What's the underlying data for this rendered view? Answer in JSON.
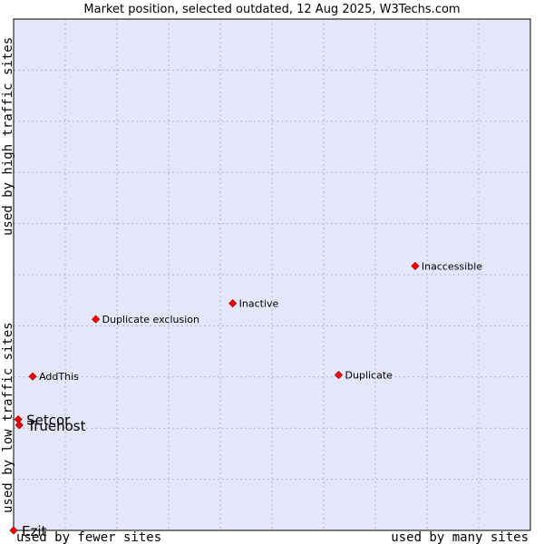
{
  "chart_data": {
    "type": "scatter",
    "title": "Market position, selected outdated, 12 Aug 2025, W3Techs.com",
    "xlabel_left": "used by fewer sites",
    "xlabel_right": "used by many sites",
    "ylabel_bottom": "used by low traffic sites",
    "ylabel_top": "used by high traffic sites",
    "xlim": [
      0,
      100
    ],
    "ylim": [
      0,
      100
    ],
    "grid": true,
    "colors": {
      "plot_background": "#e6e6fa",
      "grid": "#b0b0c8",
      "marker": "#ff0000",
      "marker_edge": "#990000"
    },
    "points": [
      {
        "label": "Inaccessible",
        "x": 77.7,
        "y": 51.7,
        "size": "small"
      },
      {
        "label": "Inactive",
        "x": 42.4,
        "y": 44.4,
        "size": "small"
      },
      {
        "label": "Duplicate exclusion",
        "x": 15.9,
        "y": 41.3,
        "size": "small"
      },
      {
        "label": "AddThis",
        "x": 3.7,
        "y": 30.1,
        "size": "small"
      },
      {
        "label": "Duplicate",
        "x": 62.9,
        "y": 30.4,
        "size": "small"
      },
      {
        "label": "Setcor",
        "x": 0.9,
        "y": 21.7,
        "size": "large"
      },
      {
        "label": "Truehost",
        "x": 1.1,
        "y": 20.6,
        "size": "large"
      },
      {
        "label": "Ezit",
        "x": 0.0,
        "y": 0.0,
        "size": "large"
      }
    ]
  }
}
